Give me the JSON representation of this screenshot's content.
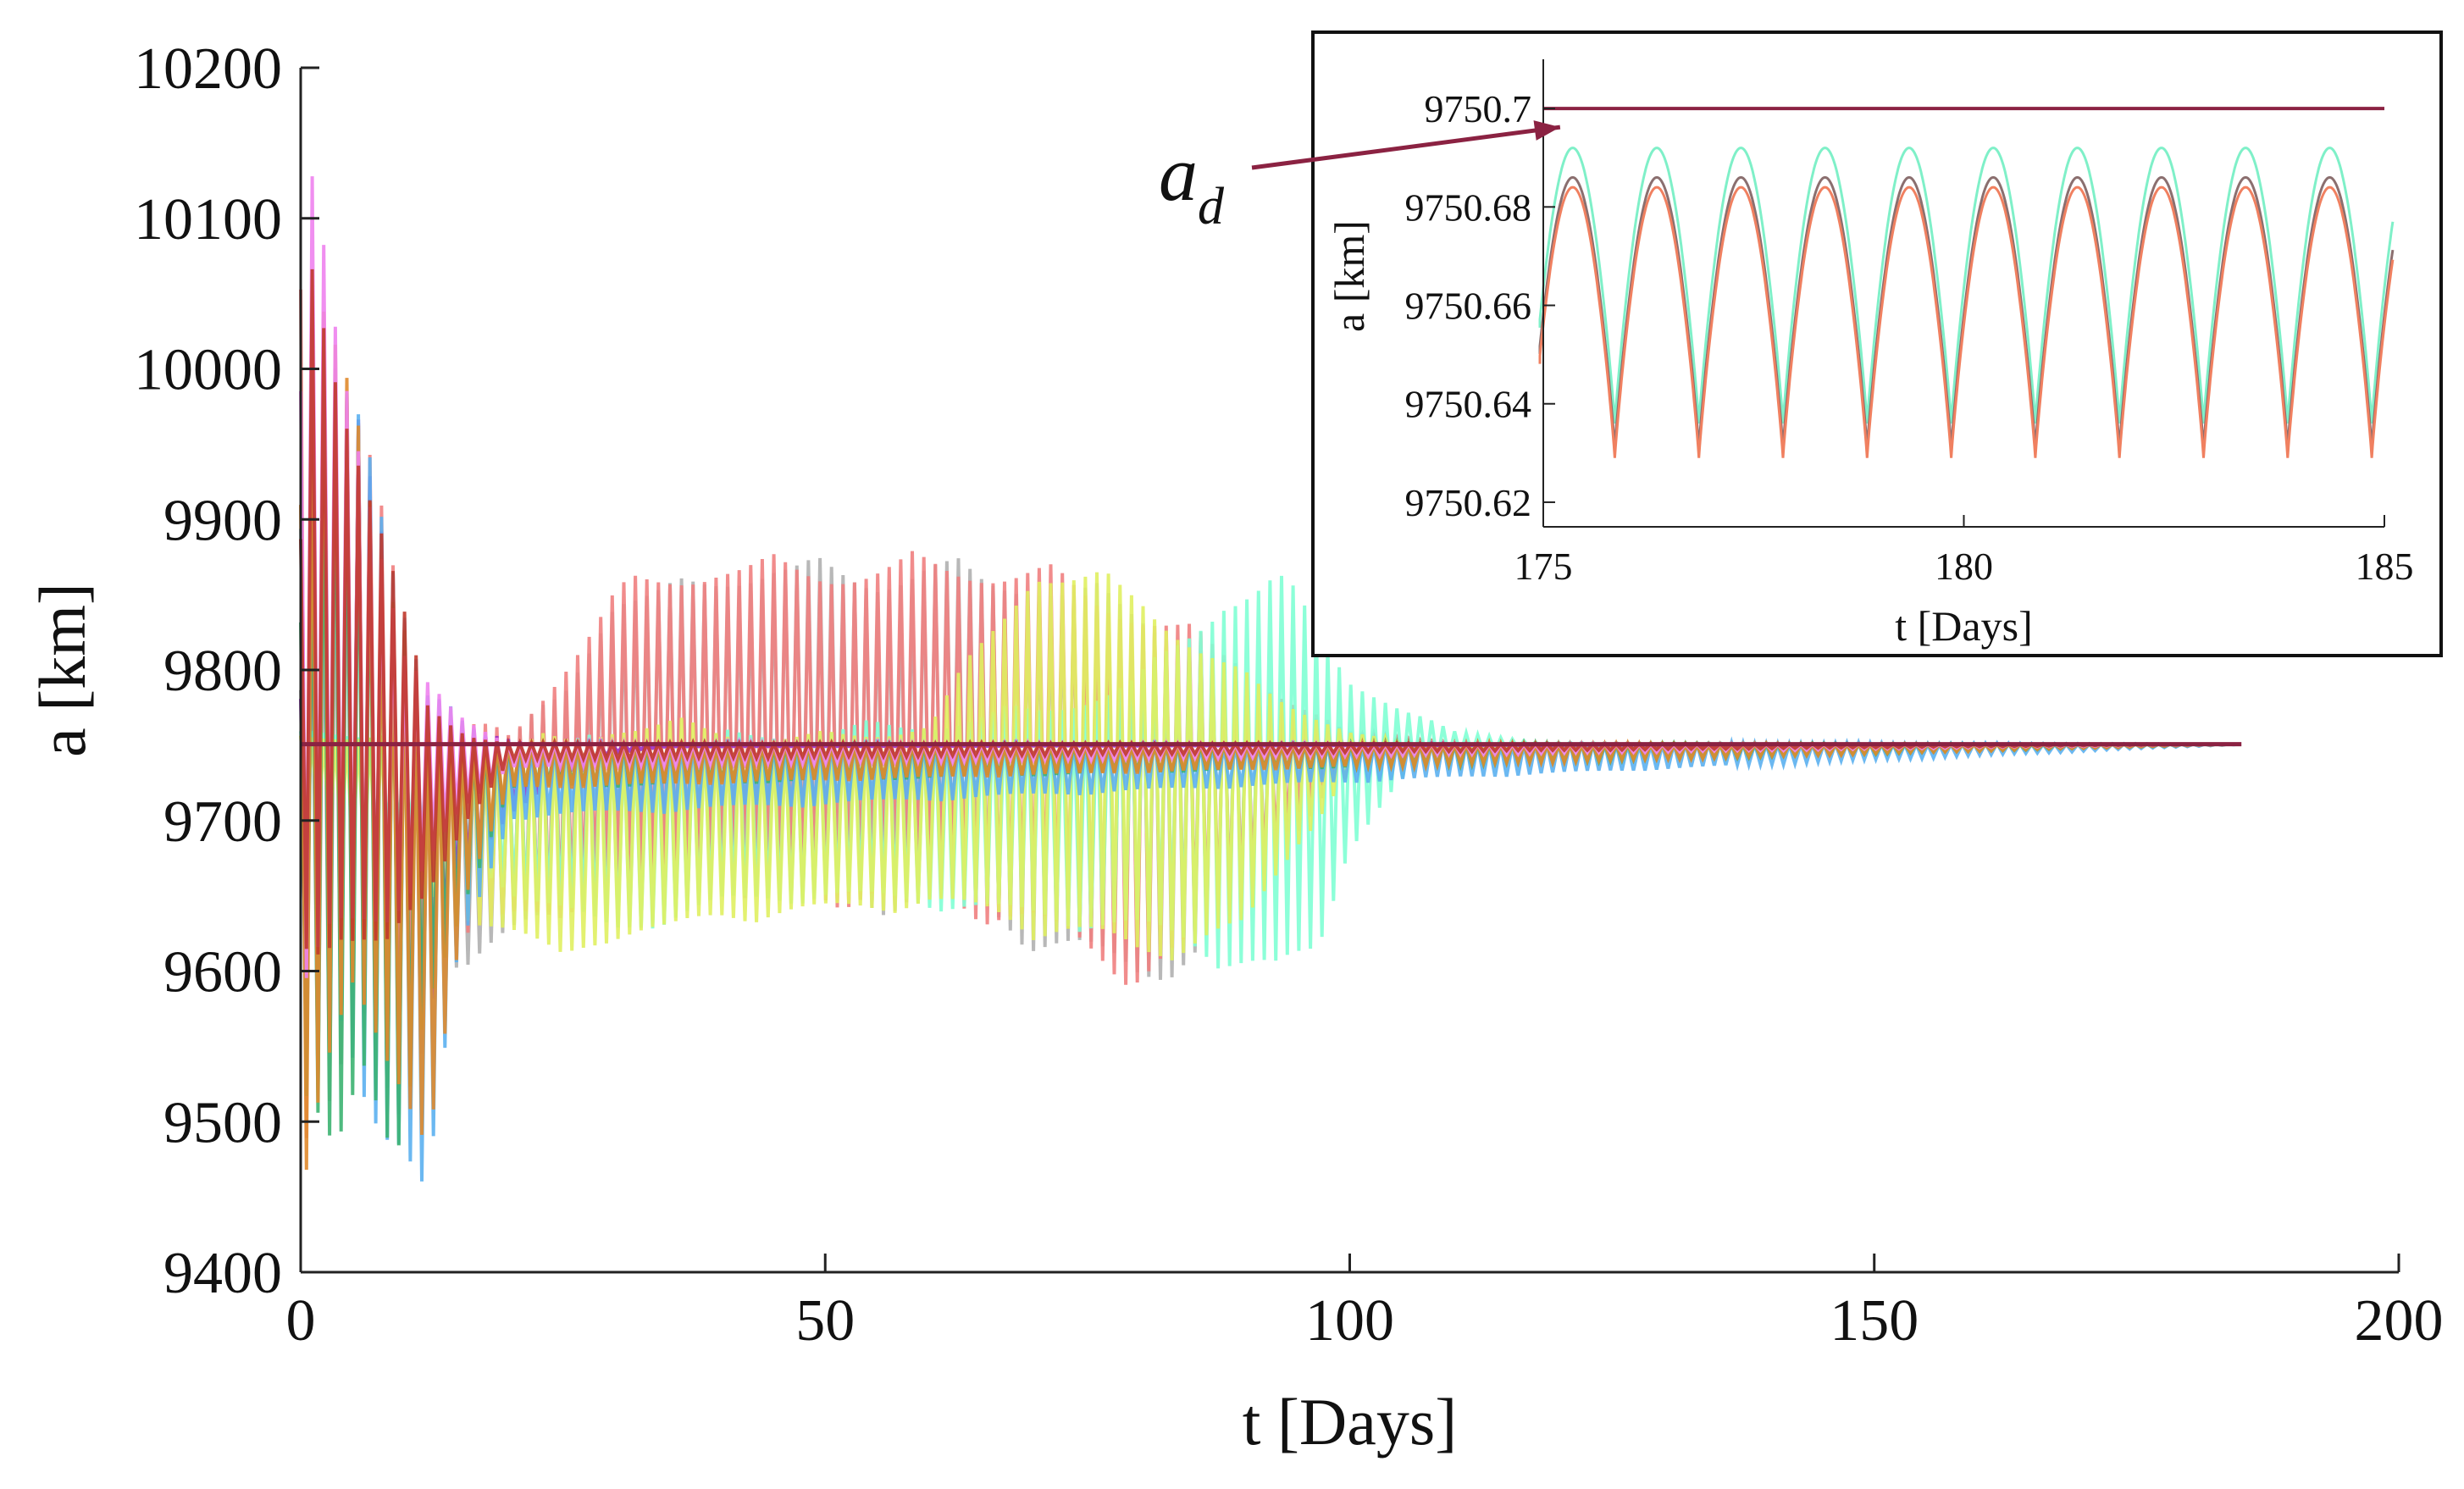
{
  "chart_data": [
    {
      "type": "line",
      "panel": "main",
      "xlabel": "t [Days]",
      "ylabel": "a [km]",
      "xlim": [
        0,
        200
      ],
      "ylim": [
        9400,
        10200
      ],
      "xticks": [
        0,
        50,
        100,
        150,
        200
      ],
      "yticks": [
        9400,
        9500,
        9600,
        9700,
        9800,
        9900,
        10000,
        10100,
        10200
      ],
      "grid": false,
      "series": [
        {
          "role": "desired",
          "color": "#8b2242",
          "x": [
            0,
            185
          ],
          "y": [
            9750.7,
            9750.7
          ]
        },
        {
          "color": "#b0b0b0",
          "x": [
            0,
            2,
            6,
            10,
            15,
            20,
            25,
            30,
            35,
            40,
            45,
            50,
            55,
            60,
            65,
            70,
            75,
            80,
            85,
            90,
            95,
            100,
            105,
            110,
            115,
            120,
            185
          ],
          "y_upper": [
            9800,
            9900,
            9950,
            9780,
            9760,
            9760,
            9790,
            9860,
            9860,
            9870,
            9880,
            9875,
            9870,
            9880,
            9870,
            9870,
            9860,
            9850,
            9830,
            9800,
            9780,
            9760,
            9755,
            9752,
            9751,
            9750.7,
            9750.7
          ],
          "y_lower": [
            9600,
            9500,
            9560,
            9580,
            9600,
            9620,
            9630,
            9640,
            9645,
            9650,
            9645,
            9640,
            9635,
            9640,
            9630,
            9610,
            9600,
            9585,
            9600,
            9640,
            9690,
            9740,
            9746,
            9749,
            9750,
            9750.6,
            9750.6
          ]
        },
        {
          "color": "#f08080",
          "x": [
            0,
            3,
            7,
            12,
            20,
            30,
            40,
            50,
            60,
            70,
            80,
            88,
            95,
            100,
            110,
            185
          ],
          "y_upper": [
            10100,
            10000,
            9950,
            9780,
            9760,
            9860,
            9880,
            9875,
            9880,
            9875,
            9850,
            9820,
            9780,
            9758,
            9752,
            9750.7
          ],
          "y_lower": [
            9450,
            9520,
            9580,
            9600,
            9630,
            9640,
            9645,
            9640,
            9640,
            9620,
            9585,
            9620,
            9700,
            9742,
            9749,
            9750.6
          ]
        },
        {
          "color": "#7fffd4",
          "x": [
            0,
            10,
            20,
            30,
            40,
            50,
            60,
            70,
            80,
            88,
            93,
            97,
            100,
            105,
            110,
            118,
            185
          ],
          "y_upper": [
            9760,
            9760,
            9755,
            9758,
            9760,
            9765,
            9770,
            9780,
            9800,
            9860,
            9870,
            9840,
            9800,
            9775,
            9760,
            9752,
            9750.7
          ],
          "y_lower": [
            9700,
            9690,
            9650,
            9620,
            9640,
            9645,
            9640,
            9630,
            9620,
            9600,
            9585,
            9600,
            9680,
            9725,
            9742,
            9749,
            9750.6
          ]
        },
        {
          "color": "#e0f060",
          "x": [
            0,
            10,
            20,
            25,
            30,
            35,
            40,
            50,
            60,
            70,
            80,
            85,
            90,
            95,
            100,
            105,
            185
          ],
          "y_upper": [
            9760,
            9760,
            9755,
            9760,
            9770,
            9770,
            9765,
            9760,
            9770,
            9880,
            9860,
            9830,
            9800,
            9780,
            9760,
            9752,
            9750.7
          ],
          "y_lower": [
            9700,
            9650,
            9620,
            9600,
            9620,
            9620,
            9630,
            9635,
            9640,
            9620,
            9600,
            9610,
            9620,
            9680,
            9730,
            9746,
            9750.6
          ]
        },
        {
          "color": "#9b30c8",
          "x": [
            0,
            2,
            5,
            8,
            10,
            12,
            15,
            20,
            25,
            30,
            35,
            185
          ],
          "y_upper": [
            9800,
            10000,
            9980,
            9900,
            9850,
            9800,
            9760,
            9755,
            9752,
            9751,
            9750.7,
            9750.7
          ],
          "y_lower": [
            9550,
            9520,
            9560,
            9500,
            9480,
            9560,
            9650,
            9700,
            9730,
            9745,
            9749,
            9750.6
          ]
        },
        {
          "color": "#5bb0f0",
          "x": [
            0,
            3,
            6,
            9,
            12,
            15,
            20,
            185
          ],
          "y_upper": [
            9900,
            10020,
            10000,
            9890,
            9800,
            9770,
            9755,
            9750.7
          ],
          "y_lower": [
            9620,
            9550,
            9500,
            9480,
            9430,
            9600,
            9700,
            9750.6
          ]
        },
        {
          "color": "#3cb371",
          "x": [
            0,
            3,
            6,
            9,
            12,
            16,
            20,
            185
          ],
          "y_upper": [
            9850,
            10050,
            9950,
            9850,
            9780,
            9760,
            9752,
            9750.7
          ],
          "y_lower": [
            9500,
            9480,
            9520,
            9440,
            9560,
            9650,
            9720,
            9750.6
          ]
        },
        {
          "color": "#e08a2c",
          "x": [
            0,
            2,
            5,
            8,
            12,
            16,
            20,
            185
          ],
          "y_upper": [
            9950,
            10080,
            9990,
            9850,
            9780,
            9760,
            9752,
            9750.7
          ],
          "y_lower": [
            9440,
            9500,
            9560,
            9520,
            9480,
            9650,
            9720,
            9750.6
          ]
        },
        {
          "color": "#ee82ee",
          "x": [
            0,
            1,
            3,
            6,
            10,
            15,
            20,
            185
          ],
          "y_upper": [
            10000,
            10140,
            10050,
            9950,
            9820,
            9770,
            9752,
            9750.7
          ],
          "y_lower": [
            9550,
            9560,
            9600,
            9620,
            9640,
            9700,
            9735,
            9750.6
          ]
        },
        {
          "color": "#c0392b",
          "x": [
            0,
            1,
            4,
            8,
            12,
            16,
            20,
            185
          ],
          "y_upper": [
            9900,
            10100,
            10000,
            9900,
            9780,
            9760,
            9752,
            9750.7
          ],
          "y_lower": [
            9600,
            9580,
            9620,
            9600,
            9640,
            9700,
            9740,
            9750.6
          ]
        }
      ]
    },
    {
      "type": "line",
      "panel": "inset",
      "xlabel": "t [Days]",
      "ylabel": "a [km]",
      "xlim": [
        175,
        185
      ],
      "ylim": [
        9750.615,
        9750.71
      ],
      "xticks": [
        175,
        180,
        185
      ],
      "yticks": [
        9750.62,
        9750.64,
        9750.66,
        9750.68,
        9750.7
      ],
      "ytick_labels": [
        "9750.62",
        "9750.64",
        "9750.66",
        "9750.68",
        "9750.7"
      ],
      "grid": false,
      "annotation": {
        "label": "a",
        "subscript": "d"
      },
      "series": [
        {
          "role": "desired",
          "color": "#8b2242",
          "x": [
            175,
            185
          ],
          "y": [
            9750.7,
            9750.7
          ]
        },
        {
          "color": "#7ff0c8",
          "period": 1.0,
          "phase": 175.35,
          "y_max": 9750.692,
          "y_min": 9750.636,
          "x_end": 185.1
        },
        {
          "color": "#8b6f6f",
          "period": 1.0,
          "phase": 175.35,
          "y_max": 9750.686,
          "y_min": 9750.631,
          "x_end": 185.1
        },
        {
          "color": "#f08060",
          "period": 1.0,
          "phase": 175.35,
          "y_max": 9750.684,
          "y_min": 9750.629,
          "x_end": 185.1
        }
      ]
    }
  ]
}
